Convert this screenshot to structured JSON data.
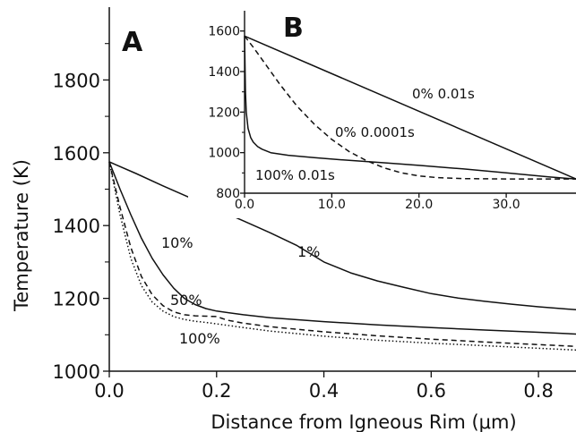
{
  "chart_data": [
    {
      "panel": "A",
      "type": "line",
      "xlabel": "Distance from Igneous Rim (μm)",
      "ylabel": "Temperature (K)",
      "xlim": [
        0.0,
        0.9
      ],
      "ylim": [
        1000,
        2000
      ],
      "xticks": [
        0.0,
        0.2,
        0.4,
        0.6,
        0.8
      ],
      "xtick_labels": [
        "0.0",
        "0.2",
        "0.4",
        "0.6",
        "0.8"
      ],
      "yticks": [
        1000,
        1200,
        1400,
        1600,
        1800
      ],
      "ytick_labels": [
        "1000",
        "1200",
        "1400",
        "1600",
        "1800"
      ],
      "grid": false,
      "series": [
        {
          "name": "1%",
          "style": "solid",
          "x": [
            0.0,
            0.05,
            0.1,
            0.15,
            0.2,
            0.25,
            0.3,
            0.35,
            0.4,
            0.45,
            0.5,
            0.55,
            0.6,
            0.65,
            0.7,
            0.75,
            0.8,
            0.85,
            0.9
          ],
          "y": [
            1575,
            1543,
            1509,
            1477,
            1445,
            1413,
            1380,
            1345,
            1300,
            1270,
            1248,
            1230,
            1213,
            1201,
            1192,
            1184,
            1177,
            1171,
            1166
          ]
        },
        {
          "name": "10%",
          "style": "solid",
          "x": [
            0.0,
            0.02,
            0.04,
            0.06,
            0.08,
            0.1,
            0.12,
            0.14,
            0.16,
            0.18,
            0.2,
            0.25,
            0.3,
            0.4,
            0.5,
            0.6,
            0.7,
            0.8,
            0.9
          ],
          "y": [
            1575,
            1500,
            1430,
            1365,
            1310,
            1265,
            1228,
            1200,
            1183,
            1172,
            1165,
            1155,
            1147,
            1136,
            1127,
            1120,
            1113,
            1107,
            1100
          ]
        },
        {
          "name": "50%",
          "style": "dashed",
          "x": [
            0.0,
            0.02,
            0.04,
            0.06,
            0.08,
            0.1,
            0.12,
            0.14,
            0.16,
            0.18,
            0.2,
            0.22,
            0.25,
            0.3,
            0.4,
            0.5,
            0.6,
            0.7,
            0.8,
            0.9
          ],
          "y": [
            1575,
            1450,
            1340,
            1260,
            1210,
            1180,
            1163,
            1155,
            1152,
            1151,
            1150,
            1140,
            1132,
            1122,
            1108,
            1097,
            1088,
            1080,
            1073,
            1066
          ]
        },
        {
          "name": "100%",
          "style": "dotted",
          "x": [
            0.0,
            0.02,
            0.04,
            0.06,
            0.08,
            0.1,
            0.12,
            0.14,
            0.16,
            0.18,
            0.2,
            0.25,
            0.3,
            0.4,
            0.5,
            0.6,
            0.7,
            0.8,
            0.9
          ],
          "y": [
            1575,
            1430,
            1310,
            1235,
            1190,
            1165,
            1150,
            1142,
            1137,
            1134,
            1130,
            1120,
            1110,
            1096,
            1085,
            1077,
            1070,
            1063,
            1056
          ]
        }
      ]
    },
    {
      "panel": "B",
      "type": "line",
      "xlabel": "",
      "ylabel": "",
      "xlim": [
        0.0,
        38.0
      ],
      "ylim": [
        800,
        1700
      ],
      "xticks": [
        0.0,
        10.0,
        20.0,
        30.0
      ],
      "xtick_labels": [
        "0.0",
        "10.0",
        "20.0",
        "30.0"
      ],
      "yticks": [
        800,
        1000,
        1200,
        1400,
        1600
      ],
      "ytick_labels": [
        "800",
        "1000",
        "1200",
        "1400",
        "1600"
      ],
      "grid": false,
      "series": [
        {
          "name": "0% 0.01s",
          "style": "solid",
          "x": [
            0.0,
            38.0
          ],
          "y": [
            1575,
            870
          ]
        },
        {
          "name": "0% 0.0001s",
          "style": "dashed",
          "x": [
            0.0,
            1.0,
            2.0,
            4.0,
            6.0,
            8.0,
            10.0,
            12.0,
            14.0,
            16.0,
            18.0,
            20.0,
            22.0,
            25.0,
            30.0,
            35.0,
            38.0
          ],
          "y": [
            1575,
            1520,
            1460,
            1340,
            1230,
            1140,
            1065,
            1005,
            960,
            925,
            900,
            885,
            877,
            872,
            870,
            870,
            870
          ]
        },
        {
          "name": "100% 0.01s",
          "style": "solid",
          "x": [
            0.0,
            0.1,
            0.2,
            0.4,
            0.7,
            1.0,
            1.5,
            2.0,
            3.0,
            5.0,
            8.0,
            12.0,
            16.0,
            20.0,
            25.0,
            30.0,
            35.0,
            38.0
          ],
          "y": [
            1575,
            1300,
            1200,
            1120,
            1075,
            1052,
            1030,
            1017,
            1000,
            987,
            975,
            962,
            950,
            937,
            920,
            900,
            880,
            870
          ]
        }
      ]
    }
  ],
  "labels": {
    "panel_a": "A",
    "panel_b": "B",
    "a_1pct": "1%",
    "a_10pct": "10%",
    "a_50pct": "50%",
    "a_100pct": "100%",
    "b_0pct_001": "0% 0.01s",
    "b_0pct_00001": "0% 0.0001s",
    "b_100pct_001": "100% 0.01s"
  }
}
